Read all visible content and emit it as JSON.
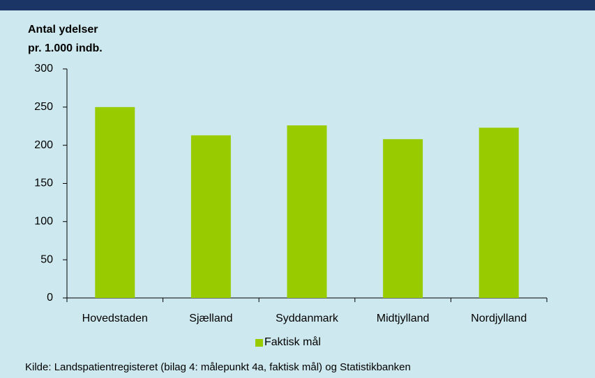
{
  "chart_data": {
    "type": "bar",
    "y_label": [
      "Antal ydelser",
      "pr. 1.000 indb."
    ],
    "categories": [
      "Hovedstaden",
      "Sjælland",
      "Syddanmark",
      "Midtjylland",
      "Nordjylland"
    ],
    "series": [
      {
        "name": "Faktisk mål",
        "color": "#99cc00",
        "values": [
          250,
          213,
          226,
          208,
          223
        ]
      }
    ],
    "ylim": [
      0,
      300
    ],
    "yticks": [
      0,
      50,
      100,
      150,
      200,
      250,
      300
    ],
    "grid": false,
    "legend": "bottom",
    "source": "Kilde: Landspatientregisteret (bilag 4: målepunkt 4a, faktisk mål) og Statistikbanken"
  }
}
